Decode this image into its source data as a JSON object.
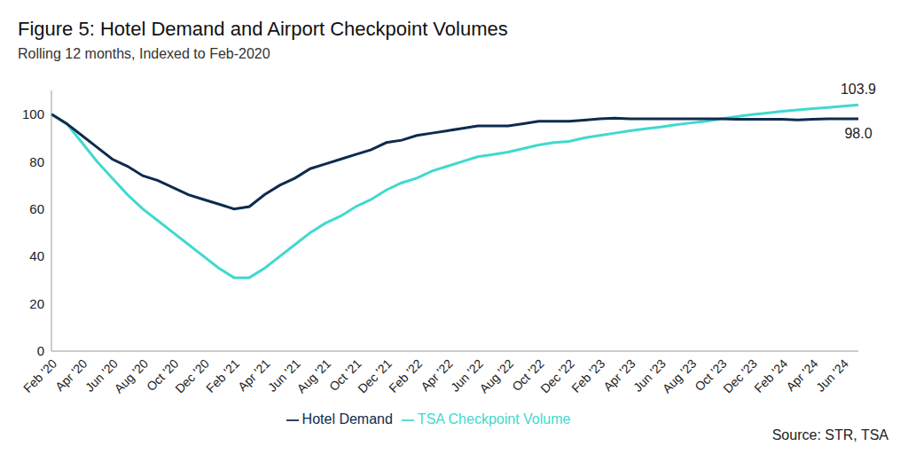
{
  "chart_data": {
    "type": "line",
    "title": "Figure 5: Hotel Demand and Airport Checkpoint Volumes",
    "subtitle": "Rolling 12 months, Indexed to Feb-2020",
    "source": "Source: STR, TSA",
    "categories": [
      "Feb '20",
      null,
      "Apr '20",
      null,
      "Jun '20",
      null,
      "Aug '20",
      null,
      "Oct '20",
      null,
      "Dec '20",
      null,
      "Feb '21",
      null,
      "Apr '21",
      null,
      "Jun '21",
      null,
      "Aug '21",
      null,
      "Oct '21",
      null,
      "Dec '21",
      null,
      "Feb '22",
      null,
      "Apr '22",
      null,
      "Jun '22",
      null,
      "Aug '22",
      null,
      "Oct '22",
      null,
      "Dec '22",
      null,
      "Feb '23",
      null,
      "Apr '23",
      null,
      "Jun '23",
      null,
      "Aug '23",
      null,
      "Oct '23",
      null,
      "Dec '23",
      null,
      "Feb '24",
      null,
      "Apr '24",
      null,
      "Jun '24",
      null
    ],
    "series": [
      {
        "name": "TSA Checkpoint Volume",
        "color": "#40d9cf",
        "values": [
          100,
          96,
          88,
          80,
          73,
          66,
          60,
          55,
          50,
          45,
          40,
          35,
          31,
          31,
          35,
          40,
          45,
          50,
          54,
          57,
          61,
          64,
          68,
          71,
          73,
          76,
          78,
          80,
          82,
          83,
          84,
          85.5,
          87,
          88,
          88.5,
          90,
          91,
          92,
          93,
          93.8,
          94.6,
          95.5,
          96.3,
          97,
          98,
          99,
          99.8,
          100.5,
          101.2,
          101.8,
          102.3,
          102.8,
          103.4,
          103.9
        ]
      },
      {
        "name": "Hotel Demand",
        "color": "#0d2b4e",
        "values": [
          100,
          96,
          91,
          86,
          81,
          78,
          74,
          72,
          69,
          66,
          64,
          62,
          60,
          61,
          66,
          70,
          73,
          77,
          79,
          81,
          83,
          85,
          88,
          89,
          91,
          92,
          93,
          94,
          95,
          95,
          95,
          96,
          97,
          97,
          97,
          97.5,
          98,
          98.3,
          98,
          98,
          98,
          98,
          98,
          98,
          98,
          97.8,
          97.8,
          97.8,
          97.8,
          97.6,
          97.8,
          98,
          98,
          98.0
        ]
      }
    ],
    "annotations": [
      {
        "text": "103.9",
        "series": "TSA Checkpoint Volume"
      },
      {
        "text": "98.0",
        "series": "Hotel Demand"
      }
    ],
    "ylim": [
      0,
      110
    ],
    "yticks": [
      0,
      20,
      40,
      60,
      80,
      100
    ],
    "grid": false,
    "legend": "bottom"
  }
}
